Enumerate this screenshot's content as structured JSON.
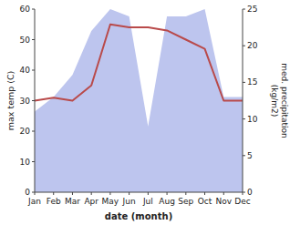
{
  "chart_data": {
    "type": "line",
    "xlabel": "date (month)",
    "ylabel": "max temp (C)",
    "y2label": "med. precipitation\n(kg/m2)",
    "categories": [
      "Jan",
      "Feb",
      "Mar",
      "Apr",
      "May",
      "Jun",
      "Jul",
      "Aug",
      "Sep",
      "Oct",
      "Nov",
      "Dec"
    ],
    "series": [
      {
        "type": "area",
        "axis": "y2",
        "color": "#bdc5ee",
        "values": [
          11,
          13,
          16,
          22,
          25,
          24,
          9,
          24,
          24,
          25,
          13,
          13
        ]
      },
      {
        "type": "line",
        "color": "#b94a4a",
        "values": [
          30,
          31,
          30,
          35,
          55,
          54,
          54,
          53,
          50,
          47,
          30,
          30
        ]
      }
    ],
    "ylim": [
      0,
      60
    ],
    "yticks": [
      0,
      10,
      20,
      30,
      40,
      50,
      60
    ],
    "y2lim": [
      0,
      25
    ],
    "y2ticks": [
      0,
      5,
      10,
      15,
      20,
      25
    ]
  }
}
